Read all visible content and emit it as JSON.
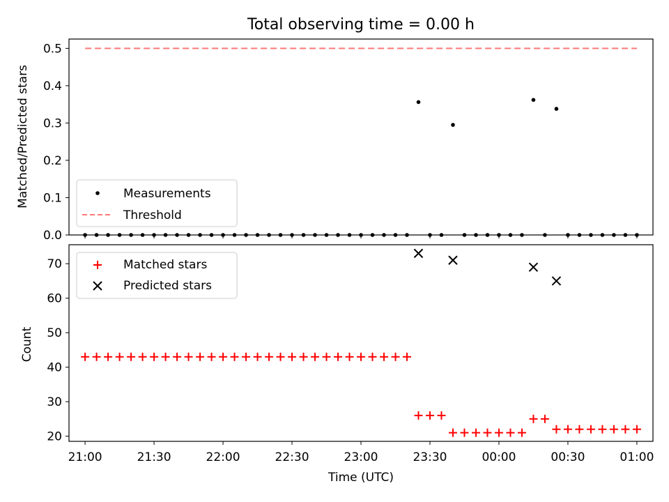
{
  "chart_data": [
    {
      "type": "scatter",
      "title": "Total observing time = 0.00 h",
      "ylabel": "Matched/Predicted stars",
      "xlim": [
        "20:53",
        "01:07"
      ],
      "ylim": [
        0.0,
        0.525
      ],
      "yticks": [
        "0.0",
        "0.1",
        "0.2",
        "0.3",
        "0.4",
        "0.5"
      ],
      "grid": false,
      "legend": {
        "location": "lower-left",
        "entries": [
          "Measurements",
          "Threshold"
        ]
      },
      "series": [
        {
          "name": "Measurements",
          "marker": "dot",
          "color": "#000000",
          "x": [
            "21:00",
            "21:05",
            "21:10",
            "21:15",
            "21:20",
            "21:25",
            "21:30",
            "21:35",
            "21:40",
            "21:45",
            "21:50",
            "21:55",
            "22:00",
            "22:05",
            "22:10",
            "22:15",
            "22:20",
            "22:25",
            "22:30",
            "22:35",
            "22:40",
            "22:45",
            "22:50",
            "22:55",
            "23:00",
            "23:05",
            "23:10",
            "23:15",
            "23:20",
            "23:25",
            "23:30",
            "23:35",
            "23:40",
            "23:45",
            "23:50",
            "23:55",
            "00:00",
            "00:05",
            "00:10",
            "00:15",
            "00:20",
            "00:25",
            "00:30",
            "00:35",
            "00:40",
            "00:45",
            "00:50",
            "00:55",
            "01:00"
          ],
          "y": [
            0,
            0,
            0,
            0,
            0,
            0,
            0,
            0,
            0,
            0,
            0,
            0,
            0,
            0,
            0,
            0,
            0,
            0,
            0,
            0,
            0,
            0,
            0,
            0,
            0,
            0,
            0,
            0,
            0,
            0.356,
            0,
            0,
            0.295,
            0,
            0,
            0,
            0,
            0,
            0,
            0.362,
            0,
            0.338,
            0,
            0,
            0,
            0,
            0,
            0,
            0
          ]
        },
        {
          "name": "Threshold",
          "style": "dashed",
          "color": "#ff7777",
          "x": [
            "21:00",
            "01:00"
          ],
          "y": [
            0.5,
            0.5
          ]
        }
      ]
    },
    {
      "type": "scatter",
      "xlabel": "Time (UTC)",
      "ylabel": "Count",
      "xlim": [
        "20:53",
        "01:07"
      ],
      "ylim": [
        18.5,
        75.5
      ],
      "xticks": [
        "21:00",
        "21:30",
        "22:00",
        "22:30",
        "23:00",
        "23:30",
        "00:00",
        "00:30",
        "01:00"
      ],
      "yticks": [
        "20",
        "30",
        "40",
        "50",
        "60",
        "70"
      ],
      "grid": false,
      "legend": {
        "location": "upper-left",
        "entries": [
          "Matched stars",
          "Predicted stars"
        ]
      },
      "series": [
        {
          "name": "Matched stars",
          "marker": "+",
          "color": "#ff0000",
          "x": [
            "21:00",
            "21:05",
            "21:10",
            "21:15",
            "21:20",
            "21:25",
            "21:30",
            "21:35",
            "21:40",
            "21:45",
            "21:50",
            "21:55",
            "22:00",
            "22:05",
            "22:10",
            "22:15",
            "22:20",
            "22:25",
            "22:30",
            "22:35",
            "22:40",
            "22:45",
            "22:50",
            "22:55",
            "23:00",
            "23:05",
            "23:10",
            "23:15",
            "23:20",
            "23:25",
            "23:30",
            "23:35",
            "23:40",
            "23:45",
            "23:50",
            "23:55",
            "00:00",
            "00:05",
            "00:10",
            "00:15",
            "00:20",
            "00:25",
            "00:30",
            "00:35",
            "00:40",
            "00:45",
            "00:50",
            "00:55",
            "01:00"
          ],
          "y": [
            43,
            43,
            43,
            43,
            43,
            43,
            43,
            43,
            43,
            43,
            43,
            43,
            43,
            43,
            43,
            43,
            43,
            43,
            43,
            43,
            43,
            43,
            43,
            43,
            43,
            43,
            43,
            43,
            43,
            26,
            26,
            26,
            21,
            21,
            21,
            21,
            21,
            21,
            21,
            25,
            25,
            22,
            22,
            22,
            22,
            22,
            22,
            22,
            22
          ]
        },
        {
          "name": "Predicted stars",
          "marker": "x",
          "color": "#000000",
          "x": [
            "23:25",
            "23:40",
            "00:15",
            "00:25"
          ],
          "y": [
            73,
            71,
            69,
            65
          ]
        }
      ]
    }
  ]
}
